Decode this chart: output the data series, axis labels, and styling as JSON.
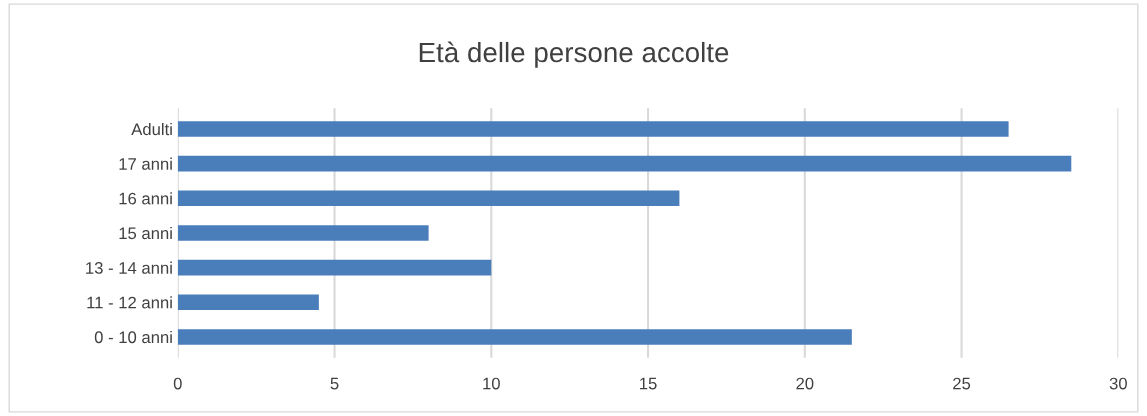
{
  "chart_data": {
    "type": "bar",
    "orientation": "horizontal",
    "title": "Età delle persone accolte",
    "categories": [
      "Adulti",
      "17 anni",
      "16 anni",
      "15 anni",
      "13 - 14 anni",
      "11 - 12 anni",
      "0 - 10 anni"
    ],
    "values": [
      26.5,
      28.5,
      16,
      8,
      10,
      4.5,
      21.5
    ],
    "color": "#4a7ebb",
    "xlim": [
      0,
      30
    ],
    "xticks": [
      0,
      5,
      10,
      15,
      20,
      25,
      30
    ],
    "grid": "x"
  }
}
